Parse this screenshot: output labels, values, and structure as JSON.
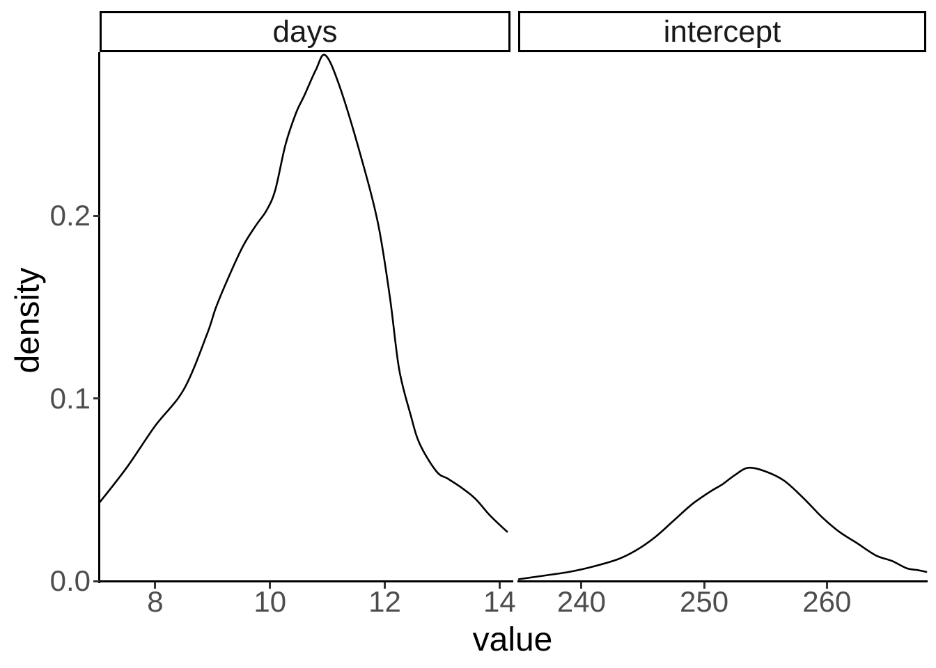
{
  "chart_data": {
    "type": "line",
    "subtype": "faceted_density",
    "title": "",
    "xlabel": "value",
    "ylabel": "density",
    "grid": false,
    "legend": "none",
    "background_color": "#ffffff",
    "curve_color": "#000000",
    "axis_line_color": "#000000",
    "tick_color": "#333333",
    "axis_text_color": "#4d4d4d",
    "strip_text_color": "#1a1a1a",
    "ylim": [
      0,
      0.2888
    ],
    "yticks": [
      0,
      0.1,
      0.2
    ],
    "ytick_labels": [
      "0.0",
      "0.1",
      "0.2"
    ],
    "facets": [
      {
        "label": "days",
        "xlim": [
          7.03,
          14.19
        ],
        "xticks": [
          8,
          10,
          12,
          14
        ],
        "xtick_labels": [
          "8",
          "10",
          "12",
          "14"
        ],
        "x": [
          7.03,
          7.5,
          8.0,
          8.5,
          8.9,
          9.06,
          9.3,
          9.54,
          9.76,
          9.94,
          10.09,
          10.27,
          10.45,
          10.6,
          10.8,
          10.96,
          11.2,
          11.57,
          11.88,
          12.09,
          12.25,
          12.45,
          12.61,
          12.9,
          13.1,
          13.34,
          13.58,
          13.83,
          14.13
        ],
        "y": [
          0.043,
          0.062,
          0.085,
          0.105,
          0.135,
          0.15,
          0.168,
          0.184,
          0.195,
          0.203,
          0.214,
          0.239,
          0.256,
          0.266,
          0.28,
          0.288,
          0.272,
          0.234,
          0.196,
          0.155,
          0.116,
          0.091,
          0.075,
          0.06,
          0.056,
          0.051,
          0.045,
          0.036,
          0.027
        ]
      },
      {
        "label": "intercept",
        "xlim": [
          234.84,
          268.1
        ],
        "xticks": [
          240,
          250,
          260
        ],
        "xtick_labels": [
          "240",
          "250",
          "260"
        ],
        "x": [
          234.9,
          237,
          239,
          241,
          243,
          244.5,
          246,
          247.5,
          249,
          250.5,
          251.5,
          252.5,
          253.6,
          255,
          256.5,
          258,
          259.6,
          261,
          262.4,
          264,
          265.3,
          266.5,
          267.4,
          268.1
        ],
        "y": [
          0.001,
          0.003,
          0.005,
          0.008,
          0.012,
          0.017,
          0.024,
          0.033,
          0.042,
          0.049,
          0.053,
          0.058,
          0.062,
          0.06,
          0.055,
          0.046,
          0.035,
          0.027,
          0.021,
          0.014,
          0.011,
          0.007,
          0.006,
          0.005
        ]
      }
    ]
  }
}
